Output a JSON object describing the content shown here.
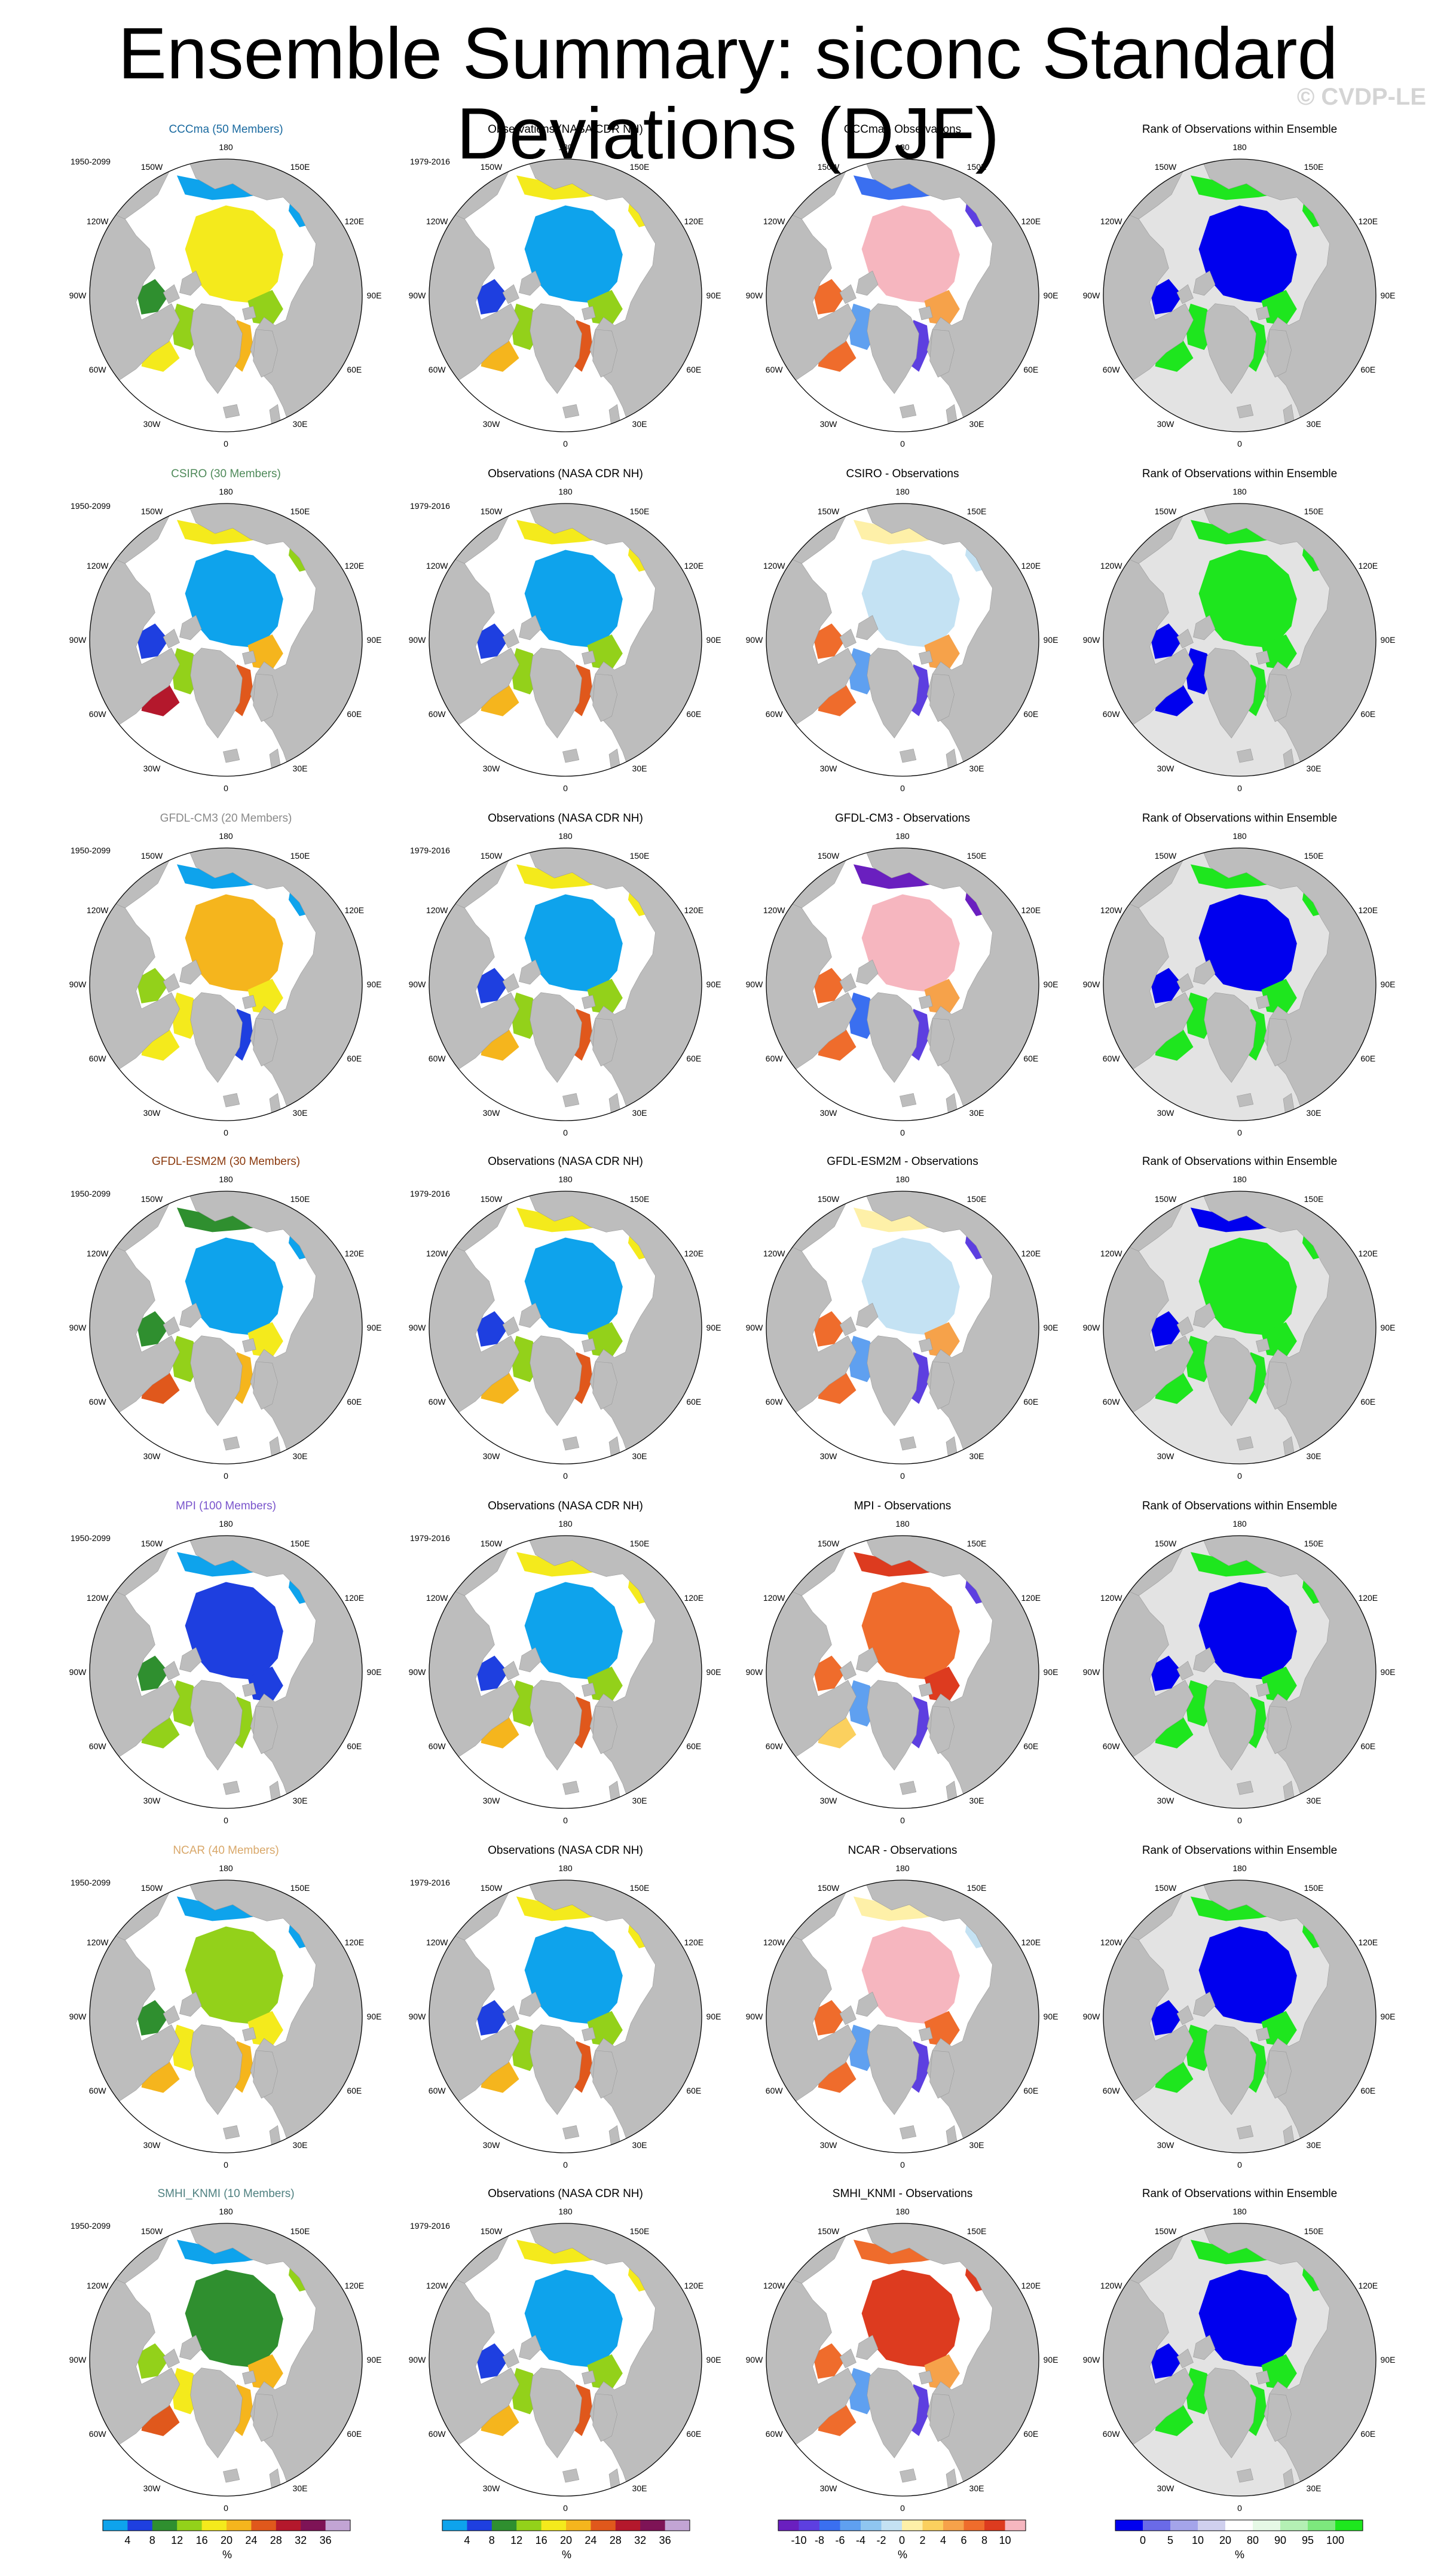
{
  "title": "Ensemble Summary: siconc Standard Deviations (DJF)",
  "watermark": "© CVDP-LE",
  "column_labels": {
    "obs": "Observations (NASA CDR NH)",
    "diff_suffix": " - Observations",
    "rank": "Rank of Observations within Ensemble"
  },
  "periods": {
    "model": "1950-2099",
    "obs": "1979-2016"
  },
  "longitude_labels": [
    "180",
    "150E",
    "120E",
    "90E",
    "60E",
    "30E",
    "0",
    "30W",
    "60W",
    "90W",
    "120W",
    "150W"
  ],
  "rows": [
    {
      "model": "CCCma",
      "members_label": "CCCma (50 Members)",
      "color": "#1a6aa0",
      "style": "cccma"
    },
    {
      "model": "CSIRO",
      "members_label": "CSIRO (30 Members)",
      "color": "#4f8a5a",
      "style": "csiro"
    },
    {
      "model": "GFDL-CM3",
      "members_label": "GFDL-CM3 (20 Members)",
      "color": "#8a8a8a",
      "style": "gfdlcm3"
    },
    {
      "model": "GFDL-ESM2M",
      "members_label": "GFDL-ESM2M (30 Members)",
      "color": "#8b3a0e",
      "style": "gfdlesm"
    },
    {
      "model": "MPI",
      "members_label": "MPI (100 Members)",
      "color": "#7a55cc",
      "style": "mpi"
    },
    {
      "model": "NCAR",
      "members_label": "NCAR (40 Members)",
      "color": "#d9a86a",
      "style": "ncar"
    },
    {
      "model": "SMHI_KNMI",
      "members_label": "SMHI_KNMI (10 Members)",
      "color": "#4f8080",
      "style": "smhi"
    }
  ],
  "colors": {
    "land": "#bdbdbd",
    "ocean": "#ffffff",
    "rank_background": "#e3e3e3",
    "std_palette": [
      "#0ea3ec",
      "#1e3fe0",
      "#2f8f2f",
      "#93d11a",
      "#f4ea1c",
      "#f5b51d",
      "#e0581c",
      "#b4182c",
      "#7e1356",
      "#c2a4d4"
    ],
    "diff_palette": [
      "#6a1fbf",
      "#5d3fe0",
      "#3a6ff0",
      "#5fa0f0",
      "#8fc6f0",
      "#c4e2f3",
      "#fef0a8",
      "#fbd05e",
      "#f6a24a",
      "#ef6c2c",
      "#dd3b1f",
      "#f6b6bf"
    ],
    "rank_palette": [
      "#0000ee",
      "#6a6ae8",
      "#a4a4ea",
      "#d0d0ee",
      "#ffffff",
      "#e6f9e6",
      "#b4f0b4",
      "#7de87d",
      "#1ee61e"
    ]
  },
  "colorbars": [
    {
      "unit": "%",
      "ticks": [
        "4",
        "8",
        "12",
        "16",
        "20",
        "24",
        "28",
        "32",
        "36"
      ]
    },
    {
      "unit": "%",
      "ticks": [
        "4",
        "8",
        "12",
        "16",
        "20",
        "24",
        "28",
        "32",
        "36"
      ]
    },
    {
      "unit": "%",
      "ticks": [
        "-10",
        "-8",
        "-6",
        "-4",
        "-2",
        "0",
        "2",
        "4",
        "6",
        "8",
        "10"
      ]
    },
    {
      "unit": "%",
      "ticks": [
        "0",
        "5",
        "10",
        "20",
        "80",
        "90",
        "95",
        "100"
      ]
    }
  ]
}
